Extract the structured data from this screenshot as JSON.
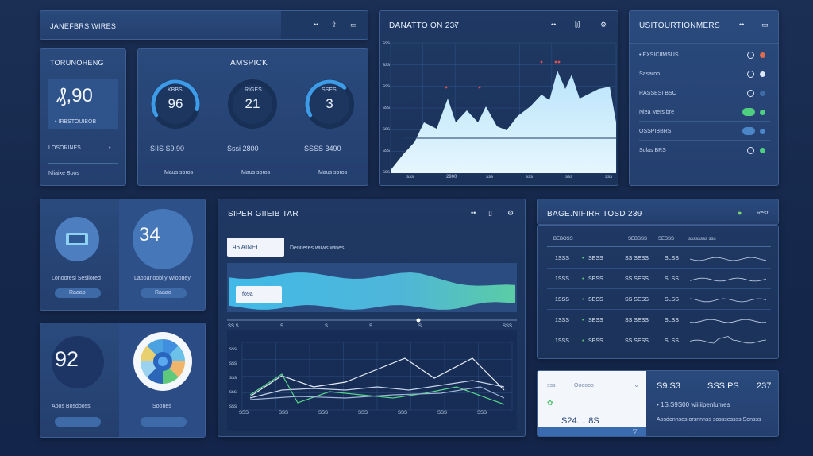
{
  "top_header": {
    "title": "JANEFBRS WIRES"
  },
  "card_total": {
    "title": "TORUNOHENG",
    "value": "₰,90",
    "link": "• IRBSTOUIBOB",
    "row1_label": "LOSORINES",
    "row1_value": "•",
    "footer": "Nliaixe Boos"
  },
  "gauges": {
    "title": "AMSPICK",
    "items": [
      {
        "value": "96",
        "label": "KBBS",
        "stat": "SIIS S9.90",
        "footer": "Maus sbros",
        "level": 0.62
      },
      {
        "value": "21",
        "label": "RIGES",
        "stat": "Sssi 2800",
        "footer": "Maus sbros",
        "level": 0.0
      },
      {
        "value": "3",
        "label": "SSES",
        "stat": "SSSS 3490",
        "footer": "Maus sbros",
        "level": 0.45
      }
    ]
  },
  "area_chart_panel": {
    "title": "DANATTO ON 237",
    "y_ticks": [
      "sss",
      "sss",
      "sss",
      "sss",
      "sss",
      "sss",
      "sss"
    ],
    "x_ticks": [
      "sss",
      "2900",
      "sss",
      "sss",
      "sss",
      "sss"
    ]
  },
  "settings_panel": {
    "title": "USITOURTIONMERS",
    "rows": [
      {
        "label": "• EXSICIIMSUS"
      },
      {
        "label": "Sasaroo"
      },
      {
        "label": "RASSESI BSC"
      },
      {
        "label": "Nlea Mers bre"
      },
      {
        "label": "OSSPIBBRS"
      },
      {
        "label": "Solas BRS"
      }
    ]
  },
  "icon_card": {
    "caption": "Lonooresi Sesiiored",
    "button": "Raaao"
  },
  "circle_card": {
    "value": "34",
    "caption": "Laooanoobliy Wlooney",
    "button": "Raaao"
  },
  "score_card": {
    "value": "92",
    "caption": "Aoos Bosdooss",
    "button": ""
  },
  "donut_card": {
    "caption": "Soones",
    "button": ""
  },
  "super_chart": {
    "title": "SIPER GIIEIB TAR",
    "badge": "96 AINEI",
    "subtitle": "Deniteres wiiws wines",
    "band_label": "fo9a",
    "x_ticks": [
      "SS S",
      "S",
      "S",
      "S",
      "S",
      "SSS"
    ],
    "line_y_ticks": [
      "sss",
      "sss",
      "sss",
      "sss",
      "sss"
    ],
    "line_x_ticks": [
      "SSS",
      "SSS",
      "SSS",
      "SSS",
      "SSS",
      "SSS",
      "SSS"
    ]
  },
  "table_panel": {
    "title": "BAGE.NIFIRR TOSD 239",
    "header": [
      "BEBOSS",
      "SEBSSS",
      "SESSS",
      "ssssssss sss"
    ],
    "rows": [
      [
        "1SSS",
        "SESS",
        "SS SESS",
        "SLSS"
      ],
      [
        "1SSS",
        "SESS",
        "SS SESS",
        "SLSS"
      ],
      [
        "1SSS",
        "SESS",
        "SS SESS",
        "SLSS"
      ],
      [
        "1SSS",
        "SESS",
        "SS SESS",
        "SLSS"
      ],
      [
        "1SSS",
        "SESS",
        "SS SESS",
        "SLSS"
      ]
    ]
  },
  "bottom_card": {
    "tab1": "sss",
    "tab2": "Oooooo",
    "value": "S24. ↓ 8S",
    "stat1": "S9.S3",
    "stat2": "SSS PS",
    "stat3": "237",
    "detail": "• 1S.S9S00 wiiliipenlumes",
    "footer": "Aosdonnses orsnnnss sosssessss Sonsss"
  }
}
